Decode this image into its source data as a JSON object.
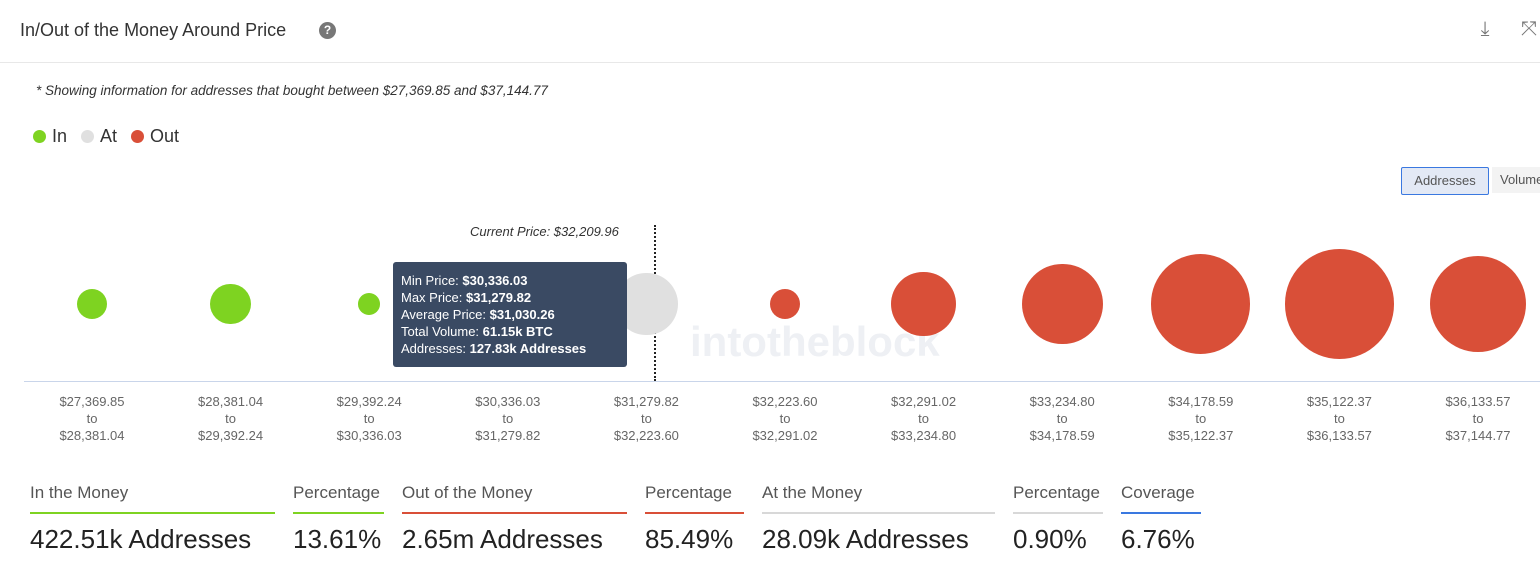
{
  "header": {
    "title": "In/Out of the Money Around Price",
    "help_icon": "question-circle-icon",
    "download_icon": "download-icon",
    "expand_icon": "expand-icon"
  },
  "note": "* Showing information for addresses that bought between $27,369.85 and $37,144.77",
  "legend": [
    {
      "label": "In",
      "color": "#7ed321"
    },
    {
      "label": "At",
      "color": "#e0e0e0"
    },
    {
      "label": "Out",
      "color": "#d94f38"
    }
  ],
  "toggles": {
    "addresses": "Addresses",
    "volume": "Volume"
  },
  "current_price": "Current Price: $32,209.96",
  "watermark": "intotheblock",
  "chart_data": {
    "type": "bubble",
    "bins": [
      {
        "from": "$27,369.85",
        "to": "$28,381.04",
        "status": "in",
        "relative_size": 0.2
      },
      {
        "from": "$28,381.04",
        "to": "$29,392.24",
        "status": "in",
        "relative_size": 0.34
      },
      {
        "from": "$29,392.24",
        "to": "$30,336.03",
        "status": "in",
        "relative_size": 0.1
      },
      {
        "from": "$30,336.03",
        "to": "$31,279.82",
        "status": "in",
        "relative_size": 0.62
      },
      {
        "from": "$31,279.82",
        "to": "$32,223.60",
        "status": "at",
        "relative_size": 0.82
      },
      {
        "from": "$32,223.60",
        "to": "$32,291.02",
        "status": "out",
        "relative_size": 0.2
      },
      {
        "from": "$32,291.02",
        "to": "$33,234.80",
        "status": "out",
        "relative_size": 0.88
      },
      {
        "from": "$33,234.80",
        "to": "$34,178.59",
        "status": "out",
        "relative_size": 1.37
      },
      {
        "from": "$34,178.59",
        "to": "$35,122.37",
        "status": "out",
        "relative_size": 2.06
      },
      {
        "from": "$35,122.37",
        "to": "$36,133.57",
        "status": "out",
        "relative_size": 2.5
      },
      {
        "from": "$36,133.57",
        "to": "$37,144.77",
        "status": "out",
        "relative_size": 1.97
      }
    ],
    "to_label": "to"
  },
  "tooltip": {
    "min_label": "Min Price: ",
    "min": "$30,336.03",
    "max_label": "Max Price: ",
    "max": "$31,279.82",
    "avg_label": "Average Price: ",
    "avg": "$31,030.26",
    "vol_label": "Total Volume: ",
    "vol": "61.15k BTC",
    "addr_label": "Addresses: ",
    "addr": "127.83k Addresses"
  },
  "stats": [
    {
      "label": "In the Money",
      "value": "422.51k Addresses",
      "color": "#7ed321"
    },
    {
      "label": "Percentage",
      "value": "13.61%",
      "color": "#7ed321"
    },
    {
      "label": "Out of the Money",
      "value": "2.65m Addresses",
      "color": "#d94f38"
    },
    {
      "label": "Percentage",
      "value": "85.49%",
      "color": "#d94f38"
    },
    {
      "label": "At the Money",
      "value": "28.09k Addresses",
      "color": "#d8d8d8"
    },
    {
      "label": "Percentage",
      "value": "0.90%",
      "color": "#d8d8d8"
    },
    {
      "label": "Coverage",
      "value": "6.76%",
      "color": "#3a78e0"
    }
  ]
}
